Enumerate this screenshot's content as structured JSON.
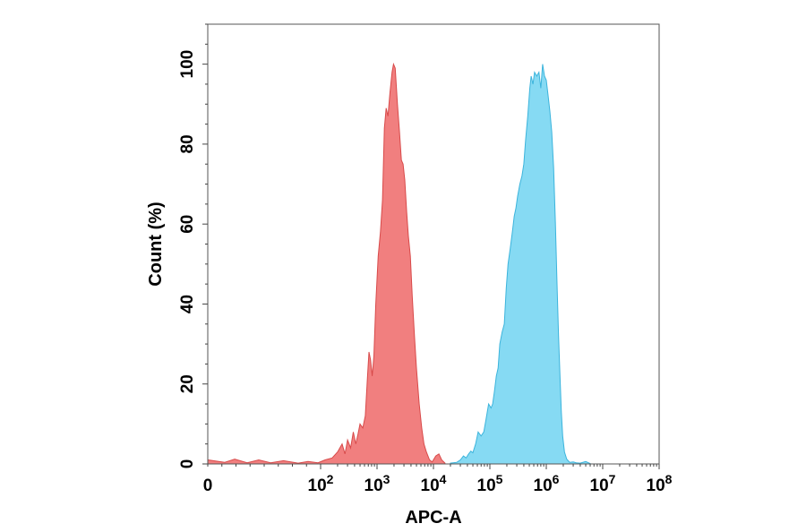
{
  "chart_data": {
    "type": "area",
    "xlabel": "APC-A",
    "ylabel": "Count (%)",
    "x_scale": "log",
    "xlim": [
      1,
      100000000
    ],
    "ylim": [
      0,
      110
    ],
    "x_ticks": [
      {
        "value": 1,
        "base": "0",
        "exp": ""
      },
      {
        "value": 100,
        "base": "10",
        "exp": "2"
      },
      {
        "value": 1000,
        "base": "10",
        "exp": "3"
      },
      {
        "value": 10000,
        "base": "10",
        "exp": "4"
      },
      {
        "value": 100000,
        "base": "10",
        "exp": "5"
      },
      {
        "value": 1000000,
        "base": "10",
        "exp": "6"
      },
      {
        "value": 10000000,
        "base": "10",
        "exp": "7"
      },
      {
        "value": 100000000,
        "base": "10",
        "exp": "8"
      }
    ],
    "y_ticks": [
      0,
      20,
      40,
      60,
      80,
      100
    ],
    "grid": false,
    "series": [
      {
        "color": "#f07878",
        "stroke": "#d84a4a",
        "points": [
          [
            1,
            1
          ],
          [
            2,
            0.4
          ],
          [
            3,
            1.2
          ],
          [
            5,
            0.3
          ],
          [
            8,
            1
          ],
          [
            13,
            0.3
          ],
          [
            22,
            0.8
          ],
          [
            40,
            0.2
          ],
          [
            60,
            0.6
          ],
          [
            90,
            0.3
          ],
          [
            120,
            1
          ],
          [
            160,
            1.5
          ],
          [
            200,
            3
          ],
          [
            240,
            5
          ],
          [
            270,
            2.5
          ],
          [
            300,
            6
          ],
          [
            340,
            4
          ],
          [
            380,
            8
          ],
          [
            420,
            5
          ],
          [
            460,
            7.5
          ],
          [
            500,
            10
          ],
          [
            560,
            9
          ],
          [
            620,
            12
          ],
          [
            680,
            22
          ],
          [
            720,
            28
          ],
          [
            770,
            26
          ],
          [
            820,
            22
          ],
          [
            880,
            27
          ],
          [
            950,
            40
          ],
          [
            1050,
            52
          ],
          [
            1150,
            58
          ],
          [
            1250,
            66
          ],
          [
            1350,
            84
          ],
          [
            1450,
            89
          ],
          [
            1560,
            87
          ],
          [
            1700,
            93
          ],
          [
            1850,
            98
          ],
          [
            1960,
            100
          ],
          [
            2100,
            99
          ],
          [
            2300,
            90
          ],
          [
            2500,
            83
          ],
          [
            2700,
            76
          ],
          [
            2900,
            75
          ],
          [
            3100,
            71
          ],
          [
            3350,
            63
          ],
          [
            3600,
            57
          ],
          [
            3900,
            52
          ],
          [
            4200,
            42
          ],
          [
            4600,
            32
          ],
          [
            5000,
            24
          ],
          [
            5600,
            15
          ],
          [
            6200,
            9
          ],
          [
            6800,
            5
          ],
          [
            7500,
            3
          ],
          [
            8500,
            1
          ],
          [
            9500,
            0.5
          ],
          [
            11000,
            2
          ],
          [
            12500,
            2.5
          ],
          [
            14000,
            1
          ],
          [
            16000,
            0.2
          ]
        ]
      },
      {
        "color": "#80d8f2",
        "stroke": "#3cb4dc",
        "points": [
          [
            20000,
            0.2
          ],
          [
            26000,
            0.4
          ],
          [
            30000,
            1
          ],
          [
            34000,
            2
          ],
          [
            38000,
            1.5
          ],
          [
            42000,
            2.5
          ],
          [
            46000,
            3.2
          ],
          [
            50000,
            2.8
          ],
          [
            56000,
            5
          ],
          [
            62000,
            8
          ],
          [
            70000,
            7
          ],
          [
            78000,
            8
          ],
          [
            85000,
            11
          ],
          [
            95000,
            15
          ],
          [
            105000,
            14
          ],
          [
            112000,
            15
          ],
          [
            120000,
            18
          ],
          [
            130000,
            22
          ],
          [
            140000,
            24
          ],
          [
            150000,
            30
          ],
          [
            165000,
            33
          ],
          [
            180000,
            35
          ],
          [
            195000,
            44
          ],
          [
            210000,
            50
          ],
          [
            230000,
            54
          ],
          [
            250000,
            58
          ],
          [
            270000,
            62
          ],
          [
            290000,
            64
          ],
          [
            310000,
            67
          ],
          [
            340000,
            70
          ],
          [
            370000,
            72
          ],
          [
            400000,
            75
          ],
          [
            430000,
            81
          ],
          [
            470000,
            87
          ],
          [
            510000,
            94
          ],
          [
            540000,
            97
          ],
          [
            580000,
            95
          ],
          [
            620000,
            98
          ],
          [
            680000,
            97
          ],
          [
            740000,
            98
          ],
          [
            800000,
            94
          ],
          [
            860000,
            100
          ],
          [
            930000,
            97
          ],
          [
            1000000,
            96
          ],
          [
            1080000,
            92
          ],
          [
            1160000,
            88
          ],
          [
            1250000,
            83
          ],
          [
            1350000,
            74
          ],
          [
            1450000,
            60
          ],
          [
            1550000,
            45
          ],
          [
            1650000,
            32
          ],
          [
            1750000,
            22
          ],
          [
            1850000,
            13
          ],
          [
            1950000,
            7
          ],
          [
            2100000,
            3
          ],
          [
            2300000,
            1.2
          ],
          [
            2600000,
            0.4
          ],
          [
            3000000,
            0.5
          ],
          [
            3400000,
            0.3
          ],
          [
            4000000,
            0.2
          ],
          [
            5000000,
            0.6
          ],
          [
            6000000,
            0.1
          ]
        ]
      }
    ]
  }
}
